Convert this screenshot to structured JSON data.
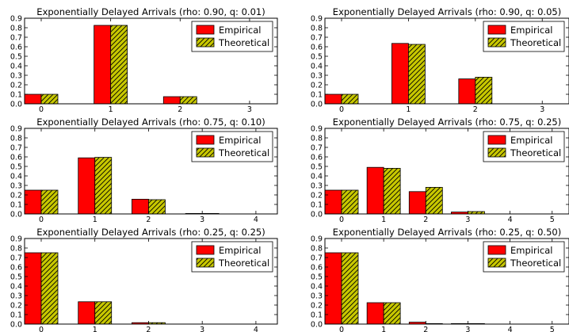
{
  "colors": {
    "empirical": "#ff0000",
    "theoretical": "#c8c800",
    "hatch": "#000000",
    "axes": "#000000"
  },
  "chart_data": [
    {
      "type": "bar",
      "title": "Exponentially Delayed Arrivals (rho: 0.90, q: 0.01)",
      "categories": [
        "0",
        "1",
        "2",
        "3"
      ],
      "ylim": [
        0,
        0.9
      ],
      "yticks": [
        "0.0",
        "0.1",
        "0.2",
        "0.3",
        "0.4",
        "0.5",
        "0.6",
        "0.7",
        "0.8",
        "0.9"
      ],
      "legend": "top-right",
      "series": [
        {
          "name": "Empirical",
          "values": [
            0.1,
            0.825,
            0.075,
            0.0
          ]
        },
        {
          "name": "Theoretical",
          "values": [
            0.1,
            0.825,
            0.075,
            0.0
          ]
        }
      ]
    },
    {
      "type": "bar",
      "title": "Exponentially Delayed Arrivals (rho: 0.90, q: 0.05)",
      "categories": [
        "0",
        "1",
        "2",
        "3"
      ],
      "ylim": [
        0,
        0.9
      ],
      "yticks": [
        "0.0",
        "0.1",
        "0.2",
        "0.3",
        "0.4",
        "0.5",
        "0.6",
        "0.7",
        "0.8",
        "0.9"
      ],
      "legend": "top-right",
      "series": [
        {
          "name": "Empirical",
          "values": [
            0.1,
            0.635,
            0.262,
            0.0
          ]
        },
        {
          "name": "Theoretical",
          "values": [
            0.1,
            0.625,
            0.28,
            0.0
          ]
        }
      ]
    },
    {
      "type": "bar",
      "title": "Exponentially Delayed Arrivals (rho: 0.75, q: 0.10)",
      "categories": [
        "0",
        "1",
        "2",
        "3",
        "4"
      ],
      "ylim": [
        0,
        0.9
      ],
      "yticks": [
        "0.0",
        "0.1",
        "0.2",
        "0.3",
        "0.4",
        "0.5",
        "0.6",
        "0.7",
        "0.8",
        "0.9"
      ],
      "legend": "top-right",
      "series": [
        {
          "name": "Empirical",
          "values": [
            0.25,
            0.59,
            0.155,
            0.005,
            0.0
          ]
        },
        {
          "name": "Theoretical",
          "values": [
            0.25,
            0.595,
            0.15,
            0.005,
            0.0
          ]
        }
      ]
    },
    {
      "type": "bar",
      "title": "Exponentially Delayed Arrivals (rho: 0.75, q: 0.25)",
      "categories": [
        "0",
        "1",
        "2",
        "3",
        "4",
        "5"
      ],
      "ylim": [
        0,
        0.9
      ],
      "yticks": [
        "0.0",
        "0.1",
        "0.2",
        "0.3",
        "0.4",
        "0.5",
        "0.6",
        "0.7",
        "0.8",
        "0.9"
      ],
      "legend": "top-right",
      "series": [
        {
          "name": "Empirical",
          "values": [
            0.25,
            0.49,
            0.235,
            0.02,
            0.0,
            0.0
          ]
        },
        {
          "name": "Theoretical",
          "values": [
            0.25,
            0.48,
            0.28,
            0.025,
            0.0,
            0.0
          ]
        }
      ]
    },
    {
      "type": "bar",
      "title": "Exponentially Delayed Arrivals (rho: 0.25, q: 0.25)",
      "categories": [
        "0",
        "1",
        "2",
        "3",
        "4"
      ],
      "ylim": [
        0,
        0.9
      ],
      "yticks": [
        "0.0",
        "0.1",
        "0.2",
        "0.3",
        "0.4",
        "0.5",
        "0.6",
        "0.7",
        "0.8",
        "0.9"
      ],
      "legend": "top-right",
      "series": [
        {
          "name": "Empirical",
          "values": [
            0.75,
            0.235,
            0.015,
            0.0,
            0.0
          ]
        },
        {
          "name": "Theoretical",
          "values": [
            0.75,
            0.235,
            0.015,
            0.0,
            0.0
          ]
        }
      ]
    },
    {
      "type": "bar",
      "title": "Exponentially Delayed Arrivals (rho: 0.25, q: 0.50)",
      "categories": [
        "0",
        "1",
        "2",
        "3",
        "4",
        "5"
      ],
      "ylim": [
        0,
        0.9
      ],
      "yticks": [
        "0.0",
        "0.1",
        "0.2",
        "0.3",
        "0.4",
        "0.5",
        "0.6",
        "0.7",
        "0.8",
        "0.9"
      ],
      "legend": "top-right",
      "series": [
        {
          "name": "Empirical",
          "values": [
            0.75,
            0.225,
            0.02,
            0.005,
            0.0,
            0.0
          ]
        },
        {
          "name": "Theoretical",
          "values": [
            0.75,
            0.225,
            0.005,
            0.005,
            0.0,
            0.0
          ]
        }
      ]
    }
  ]
}
